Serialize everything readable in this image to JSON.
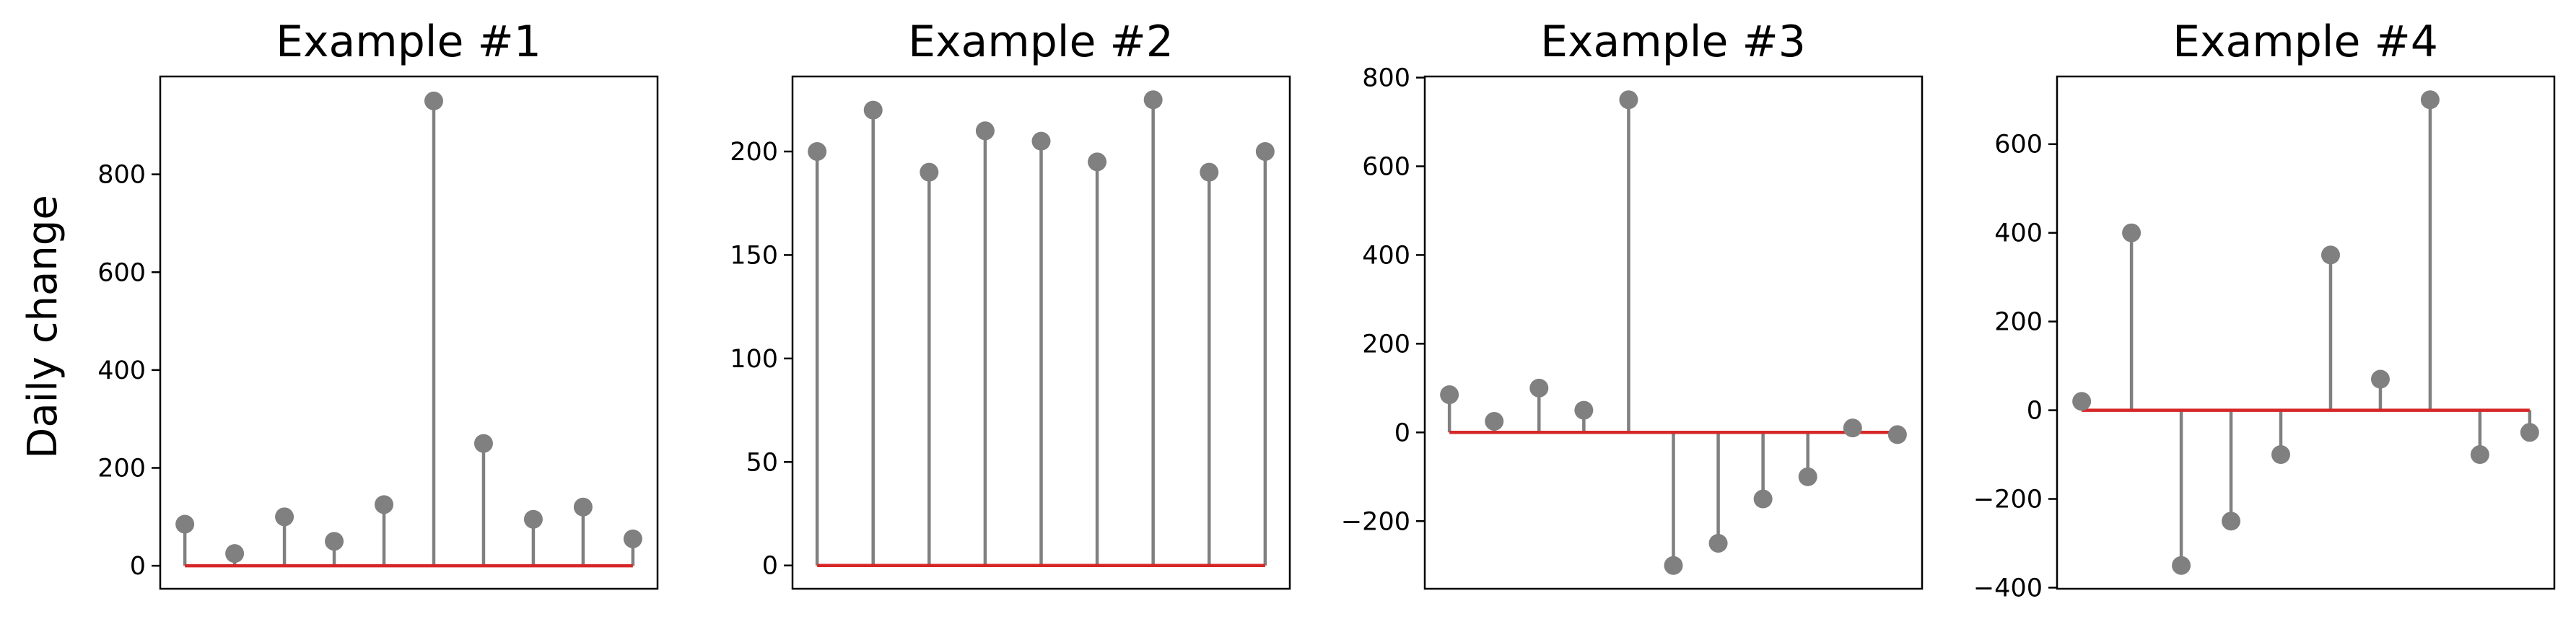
{
  "figure": {
    "ylabel": "Daily change",
    "stem_color": "#808080",
    "marker_color": "#808080",
    "baseline_color": "#d62728"
  },
  "chart_data": [
    {
      "type": "stem",
      "title": "Example #1",
      "xlabel": "",
      "ylabel": "Daily change",
      "x": [
        0,
        1,
        2,
        3,
        4,
        5,
        6,
        7,
        8,
        9
      ],
      "values": [
        85,
        25,
        100,
        50,
        125,
        950,
        250,
        95,
        120,
        55
      ],
      "baseline": 0,
      "ylim": [
        -47,
        1000
      ],
      "yticks": [
        0,
        200,
        400,
        600,
        800
      ],
      "xticks_visible": false,
      "grid": false
    },
    {
      "type": "stem",
      "title": "Example #2",
      "xlabel": "",
      "ylabel": "",
      "x": [
        0,
        1,
        2,
        3,
        4,
        5,
        6,
        7,
        8
      ],
      "values": [
        200,
        220,
        190,
        210,
        205,
        195,
        225,
        190,
        200
      ],
      "baseline": 0,
      "ylim": [
        -11.25,
        236.25
      ],
      "yticks": [
        0,
        50,
        100,
        150,
        200
      ],
      "xticks_visible": false,
      "grid": false
    },
    {
      "type": "stem",
      "title": "Example #3",
      "xlabel": "",
      "ylabel": "",
      "x": [
        0,
        1,
        2,
        3,
        4,
        5,
        6,
        7,
        8,
        9,
        10
      ],
      "values": [
        85,
        25,
        100,
        50,
        750,
        -300,
        -250,
        -150,
        -100,
        10,
        -5
      ],
      "baseline": 0,
      "ylim": [
        -352.5,
        802.5
      ],
      "yticks": [
        -200,
        0,
        200,
        400,
        600,
        800
      ],
      "xticks_visible": false,
      "grid": false
    },
    {
      "type": "stem",
      "title": "Example #4",
      "xlabel": "",
      "ylabel": "",
      "x": [
        0,
        1,
        2,
        3,
        4,
        5,
        6,
        7,
        8,
        9
      ],
      "values": [
        20,
        400,
        -350,
        -250,
        -100,
        350,
        70,
        700,
        -100,
        -50
      ],
      "baseline": 0,
      "ylim": [
        -402.5,
        752.5
      ],
      "yticks": [
        -400,
        -200,
        0,
        200,
        400,
        600
      ],
      "xticks_visible": false,
      "grid": false
    }
  ]
}
